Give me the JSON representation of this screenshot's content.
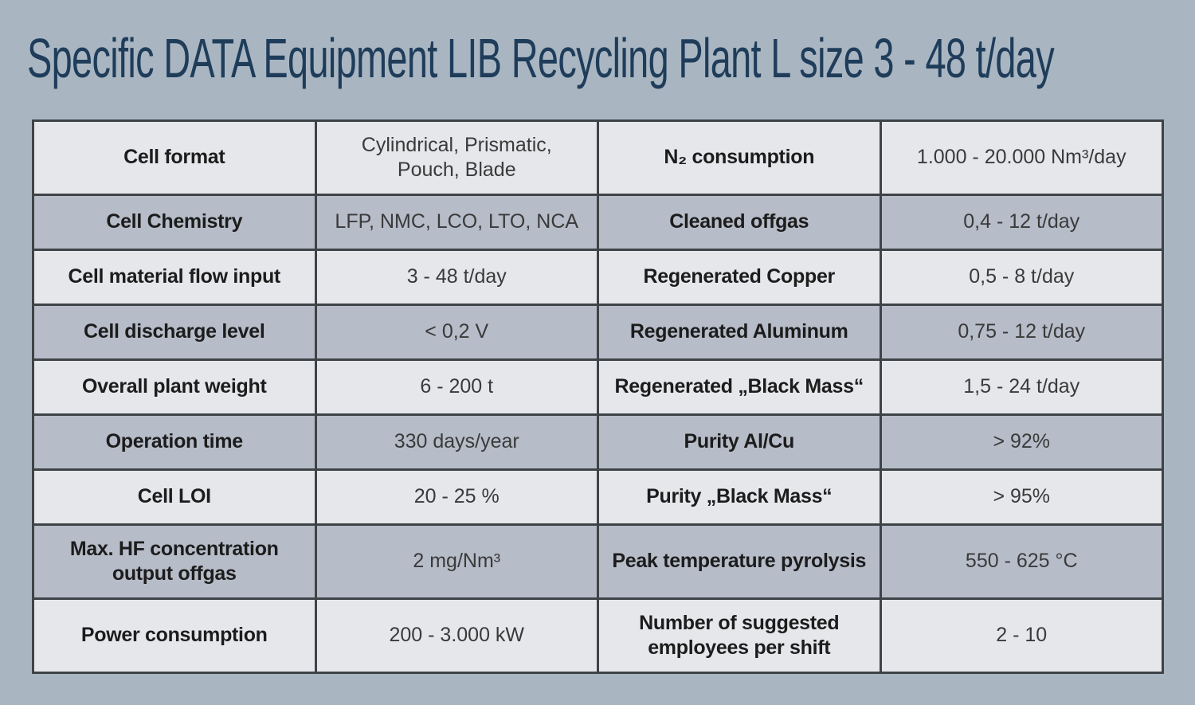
{
  "title": "Specific DATA Equipment LIB Recycling Plant L size  3 - 48 t/day",
  "colors": {
    "page_background": "#a9b6c2",
    "row_light": "#e6e7eb",
    "row_dark": "#b6bcc8",
    "grid_border": "#3e4347",
    "title_color": "#1f3d5a",
    "label_color": "#1c1c1c",
    "value_color": "#3a3a3a"
  },
  "table": {
    "rows": [
      {
        "left_label": "Cell format",
        "left_value": "Cylindrical, Prismatic,\nPouch, Blade",
        "right_label": "N₂ consumption",
        "right_value": "1.000 - 20.000 Nm³/day"
      },
      {
        "left_label": "Cell Chemistry",
        "left_value": "LFP, NMC, LCO, LTO, NCA",
        "right_label": "Cleaned offgas",
        "right_value": "0,4 - 12 t/day"
      },
      {
        "left_label": "Cell material flow input",
        "left_value": "3 - 48 t/day",
        "right_label": "Regenerated Copper",
        "right_value": "0,5 - 8 t/day"
      },
      {
        "left_label": "Cell discharge level",
        "left_value": "< 0,2 V",
        "right_label": "Regenerated Aluminum",
        "right_value": "0,75 - 12 t/day"
      },
      {
        "left_label": "Overall plant weight",
        "left_value": "6 - 200 t",
        "right_label": "Regenerated „Black Mass“",
        "right_value": "1,5 - 24 t/day"
      },
      {
        "left_label": "Operation time",
        "left_value": "330 days/year",
        "right_label": "Purity Al/Cu",
        "right_value": "> 92%"
      },
      {
        "left_label": "Cell LOI",
        "left_value": "20 - 25 %",
        "right_label": "Purity „Black Mass“",
        "right_value": "> 95%"
      },
      {
        "left_label": "Max. HF concentration\noutput offgas",
        "left_value": "2 mg/Nm³",
        "right_label": "Peak temperature pyrolysis",
        "right_value": "550 - 625 °C"
      },
      {
        "left_label": "Power consumption",
        "left_value": "200 - 3.000 kW",
        "right_label": "Number of suggested\nemployees per shift",
        "right_value": "2 - 10"
      }
    ]
  }
}
